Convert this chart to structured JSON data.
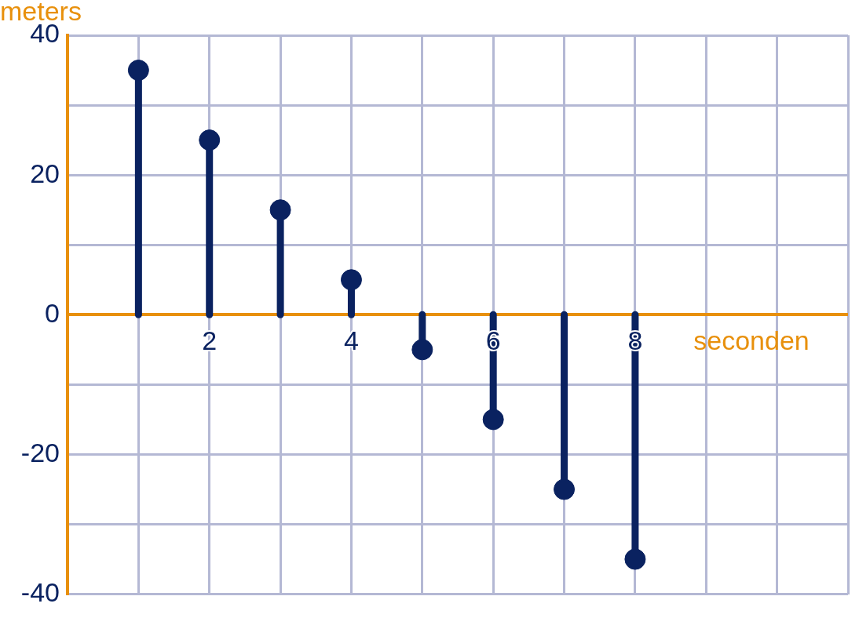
{
  "chart_data": {
    "type": "lollipop",
    "xlabel": "seconden",
    "ylabel": "meters",
    "x": [
      1,
      2,
      3,
      4,
      5,
      6,
      7,
      8
    ],
    "values": [
      35,
      25,
      15,
      5,
      -5,
      -15,
      -25,
      -35
    ],
    "color": "#0a2260",
    "xlim": [
      0,
      11
    ],
    "xticks": [
      {
        "value": 1,
        "label": null
      },
      2,
      {
        "value": 3,
        "label": null
      },
      4,
      {
        "value": 5,
        "label": null
      },
      6,
      {
        "value": 7,
        "label": null
      },
      8,
      {
        "value": 9,
        "label": null
      },
      {
        "value": 10,
        "label": null
      },
      {
        "value": 11,
        "label": null
      }
    ],
    "ylim": [
      -40,
      40
    ],
    "yticks": [
      -40,
      {
        "value": -30,
        "label": null
      },
      -20,
      {
        "value": -10,
        "label": null
      },
      0,
      {
        "value": 10,
        "label": null
      },
      20,
      {
        "value": 30,
        "label": null
      },
      40
    ],
    "grid": true,
    "marker": "circle"
  }
}
